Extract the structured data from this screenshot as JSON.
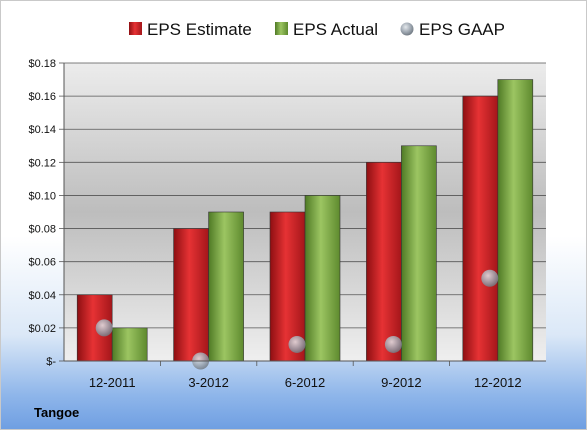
{
  "company": "Tangoe",
  "chart_data": {
    "type": "bar",
    "categories": [
      "12-2011",
      "3-2012",
      "6-2012",
      "9-2012",
      "12-2012"
    ],
    "series": [
      {
        "name": "EPS Estimate",
        "type": "bar",
        "color": "#cc1f1f",
        "values": [
          0.04,
          0.08,
          0.09,
          0.12,
          0.16
        ]
      },
      {
        "name": "EPS Actual",
        "type": "bar",
        "color": "#77a63f",
        "values": [
          0.02,
          0.09,
          0.1,
          0.13,
          0.17
        ]
      },
      {
        "name": "EPS GAAP",
        "type": "scatter",
        "color": "#9aa3ad",
        "values": [
          0.02,
          0.0,
          0.01,
          0.01,
          0.05
        ]
      }
    ],
    "ylim": [
      0,
      0.18
    ],
    "yticks": [
      0,
      0.02,
      0.04,
      0.06,
      0.08,
      0.1,
      0.12,
      0.14,
      0.16,
      0.18
    ],
    "ytick_labels": [
      "$-",
      "$0.02",
      "$0.04",
      "$0.06",
      "$0.08",
      "$0.10",
      "$0.12",
      "$0.14",
      "$0.16",
      "$0.18"
    ],
    "legend_position": "top",
    "grid": true
  }
}
